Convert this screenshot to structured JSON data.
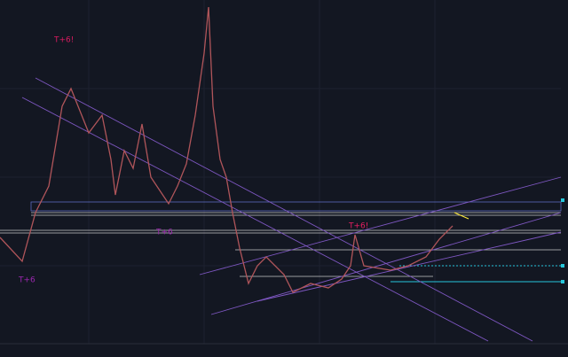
{
  "annotations": [
    "T+6!",
    "T+6",
    "T+6",
    "T+6!"
  ]
}
